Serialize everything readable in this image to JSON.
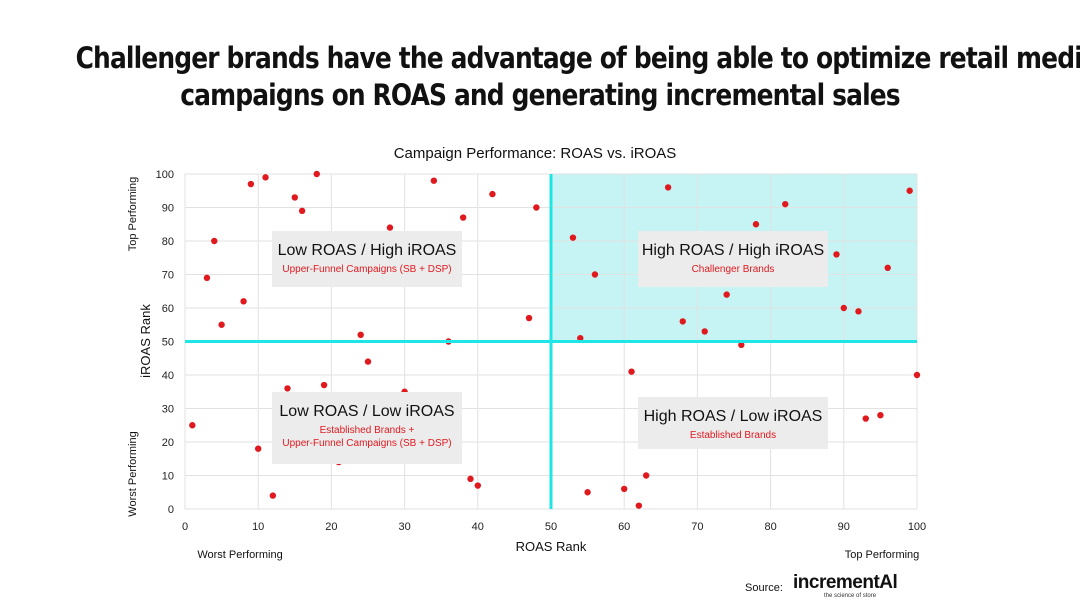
{
  "slide_title_line1": "Challenger brands have the advantage of being able to optimize retail media",
  "slide_title_line2": "campaigns on ROAS and generating incremental sales",
  "chart_data": {
    "type": "scatter",
    "title": "Campaign Performance: ROAS vs. iROAS",
    "xlabel": "ROAS Rank",
    "ylabel": "iROAS Rank",
    "xlim": [
      0,
      100
    ],
    "ylim": [
      0,
      100
    ],
    "xticks": [
      0,
      10,
      20,
      30,
      40,
      50,
      60,
      70,
      80,
      90,
      100
    ],
    "yticks": [
      0,
      10,
      20,
      30,
      40,
      50,
      60,
      70,
      80,
      90,
      100
    ],
    "x_low_label": "Worst Performing",
    "x_high_label": "Top Performing",
    "y_low_label": "Worst Performing",
    "y_high_label": "Top Performing",
    "divider_x": 50,
    "divider_y": 50,
    "highlight_color": "#c6f4f4",
    "divider_color": "#1ee6e6",
    "point_color": "#e0191f",
    "quadrants": [
      {
        "title": "Low ROAS / High iROAS",
        "subtitle": [
          "Upper-Funnel Campaigns (SB + DSP)"
        ],
        "position": "top-left"
      },
      {
        "title": "High ROAS / High iROAS",
        "subtitle": [
          "Challenger Brands"
        ],
        "position": "top-right"
      },
      {
        "title": "Low ROAS / Low iROAS",
        "subtitle": [
          "Established Brands +",
          "Upper-Funnel Campaigns (SB + DSP)"
        ],
        "position": "bottom-left"
      },
      {
        "title": "High ROAS / Low iROAS",
        "subtitle": [
          "Established Brands"
        ],
        "position": "bottom-right"
      }
    ],
    "points": [
      {
        "x": 1,
        "y": 25
      },
      {
        "x": 3,
        "y": 69
      },
      {
        "x": 4,
        "y": 80
      },
      {
        "x": 5,
        "y": 55
      },
      {
        "x": 8,
        "y": 62
      },
      {
        "x": 9,
        "y": 97
      },
      {
        "x": 10,
        "y": 18
      },
      {
        "x": 11,
        "y": 99
      },
      {
        "x": 12,
        "y": 4
      },
      {
        "x": 14,
        "y": 36
      },
      {
        "x": 15,
        "y": 93
      },
      {
        "x": 16,
        "y": 89
      },
      {
        "x": 18,
        "y": 100
      },
      {
        "x": 19,
        "y": 37
      },
      {
        "x": 21,
        "y": 14
      },
      {
        "x": 24,
        "y": 52
      },
      {
        "x": 25,
        "y": 44
      },
      {
        "x": 26,
        "y": 16
      },
      {
        "x": 28,
        "y": 84
      },
      {
        "x": 30,
        "y": 35
      },
      {
        "x": 34,
        "y": 98
      },
      {
        "x": 36,
        "y": 50
      },
      {
        "x": 38,
        "y": 87
      },
      {
        "x": 39,
        "y": 9
      },
      {
        "x": 40,
        "y": 7
      },
      {
        "x": 42,
        "y": 94
      },
      {
        "x": 47,
        "y": 57
      },
      {
        "x": 48,
        "y": 90
      },
      {
        "x": 53,
        "y": 81
      },
      {
        "x": 54,
        "y": 51
      },
      {
        "x": 55,
        "y": 5
      },
      {
        "x": 56,
        "y": 70
      },
      {
        "x": 60,
        "y": 6
      },
      {
        "x": 61,
        "y": 41
      },
      {
        "x": 62,
        "y": 1
      },
      {
        "x": 63,
        "y": 10
      },
      {
        "x": 66,
        "y": 96
      },
      {
        "x": 68,
        "y": 56
      },
      {
        "x": 71,
        "y": 53
      },
      {
        "x": 74,
        "y": 64
      },
      {
        "x": 76,
        "y": 49
      },
      {
        "x": 78,
        "y": 85
      },
      {
        "x": 82,
        "y": 91
      },
      {
        "x": 89,
        "y": 76
      },
      {
        "x": 90,
        "y": 60
      },
      {
        "x": 92,
        "y": 59
      },
      {
        "x": 93,
        "y": 27
      },
      {
        "x": 95,
        "y": 28
      },
      {
        "x": 96,
        "y": 72
      },
      {
        "x": 99,
        "y": 95
      },
      {
        "x": 100,
        "y": 40
      }
    ]
  },
  "source_label": "Source:",
  "logo_text": "incrementAl",
  "logo_tagline": "the science of store"
}
